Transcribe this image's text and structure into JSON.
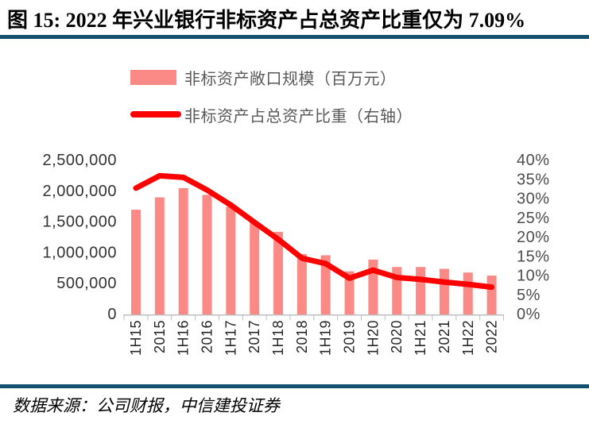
{
  "figure": {
    "title": "图 15: 2022 年兴业银行非标资产占总资产比重仅为 7.09%",
    "source": "数据来源：公司财报，中信建投证券"
  },
  "colors": {
    "bar": "#FB8A86",
    "line": "#FE0000",
    "rule": "#14506E",
    "axis": "#BFBFBF",
    "left_tick_text": "#333333",
    "right_tick_text": "#4D4D4D",
    "x_tick_text": "#262626",
    "legend_text": "#595959"
  },
  "chart_data": {
    "type": "combo-bar-line",
    "title": "图 15: 2022 年兴业银行非标资产占总资产比重仅为 7.09%",
    "gridlines": false,
    "legend_position": "top",
    "categories": [
      "1H15",
      "2015",
      "1H16",
      "2016",
      "1H17",
      "2017",
      "1H18",
      "2018",
      "1H19",
      "2019",
      "1H20",
      "2020",
      "1H21",
      "2021",
      "1H22",
      "2022"
    ],
    "series": [
      {
        "name": "非标资产敞口规模（百万元）",
        "type": "bar",
        "axis": "left",
        "values": [
          1700000,
          1900000,
          2050000,
          1940000,
          1750000,
          1490000,
          1340000,
          980000,
          960000,
          700000,
          890000,
          770000,
          770000,
          740000,
          680000,
          630000
        ]
      },
      {
        "name": "非标资产占总资产比重（右轴）",
        "type": "line",
        "axis": "right",
        "values": [
          32.8,
          36.0,
          35.6,
          32.3,
          28.4,
          23.9,
          19.5,
          14.6,
          13.2,
          9.4,
          11.5,
          9.6,
          9.1,
          8.4,
          7.8,
          7.09
        ]
      }
    ],
    "left_axis": {
      "min": 0,
      "max": 2500000,
      "step": 500000,
      "tick_labels": [
        "0",
        "500,000",
        "1,000,000",
        "1,500,000",
        "2,000,000",
        "2,500,000"
      ]
    },
    "right_axis": {
      "min": 0,
      "max": 40,
      "step": 5,
      "tick_labels": [
        "0%",
        "5%",
        "10%",
        "15%",
        "20%",
        "25%",
        "30%",
        "35%",
        "40%"
      ]
    }
  }
}
